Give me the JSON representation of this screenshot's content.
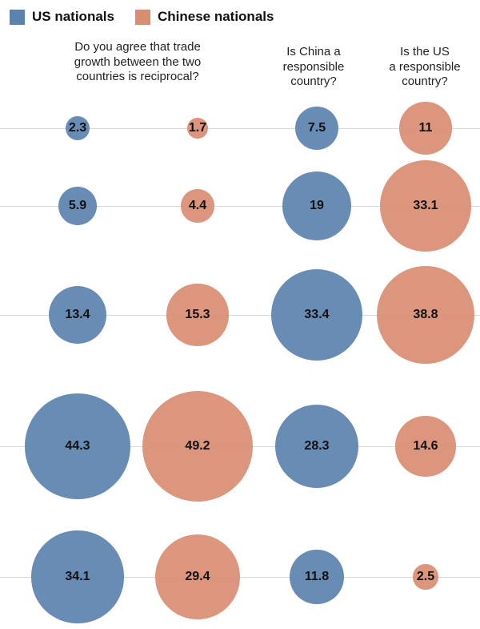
{
  "legend": {
    "items": [
      {
        "label": "US nationals",
        "color": "#5C83AE"
      },
      {
        "label": "Chinese nationals",
        "color": "#D98E73"
      }
    ]
  },
  "headers": [
    {
      "lines": [
        "Do you agree that trade",
        "growth between the two",
        "countries is reciprocal?"
      ]
    },
    {
      "lines": [
        "Is China a",
        "responsible",
        "country?"
      ]
    },
    {
      "lines": [
        "Is the US",
        "a responsible",
        "country?"
      ]
    }
  ],
  "chart_data": {
    "type": "bubble",
    "sizing": "bubble area proportional to value (percent of respondents)",
    "legend_position": "top-left",
    "grid": "horizontal line per response row, behind bubbles",
    "row_count": 5,
    "columns": [
      {
        "series": "US nationals",
        "question": "Do you agree that trade growth between the two countries is reciprocal?",
        "color": "#5C83AE",
        "values": [
          2.3,
          5.9,
          13.4,
          44.3,
          34.1
        ]
      },
      {
        "series": "Chinese nationals",
        "question": "Do you agree that trade growth between the two countries is reciprocal?",
        "color": "#D98E73",
        "values": [
          1.7,
          4.4,
          15.3,
          49.2,
          29.4
        ]
      },
      {
        "series": "US nationals",
        "question": "Is China a responsible country?",
        "color": "#5C83AE",
        "values": [
          7.5,
          19,
          33.4,
          28.3,
          11.8
        ]
      },
      {
        "series": "Chinese nationals",
        "question": "Is the US a responsible country?",
        "color": "#D98E73",
        "values": [
          11,
          33.1,
          38.8,
          14.6,
          2.5
        ]
      }
    ]
  },
  "colors": {
    "us_blue": "#5C83AE",
    "china_salmon": "#D98E73",
    "gridline": "#D8D8D8",
    "label_text": "#111111"
  }
}
